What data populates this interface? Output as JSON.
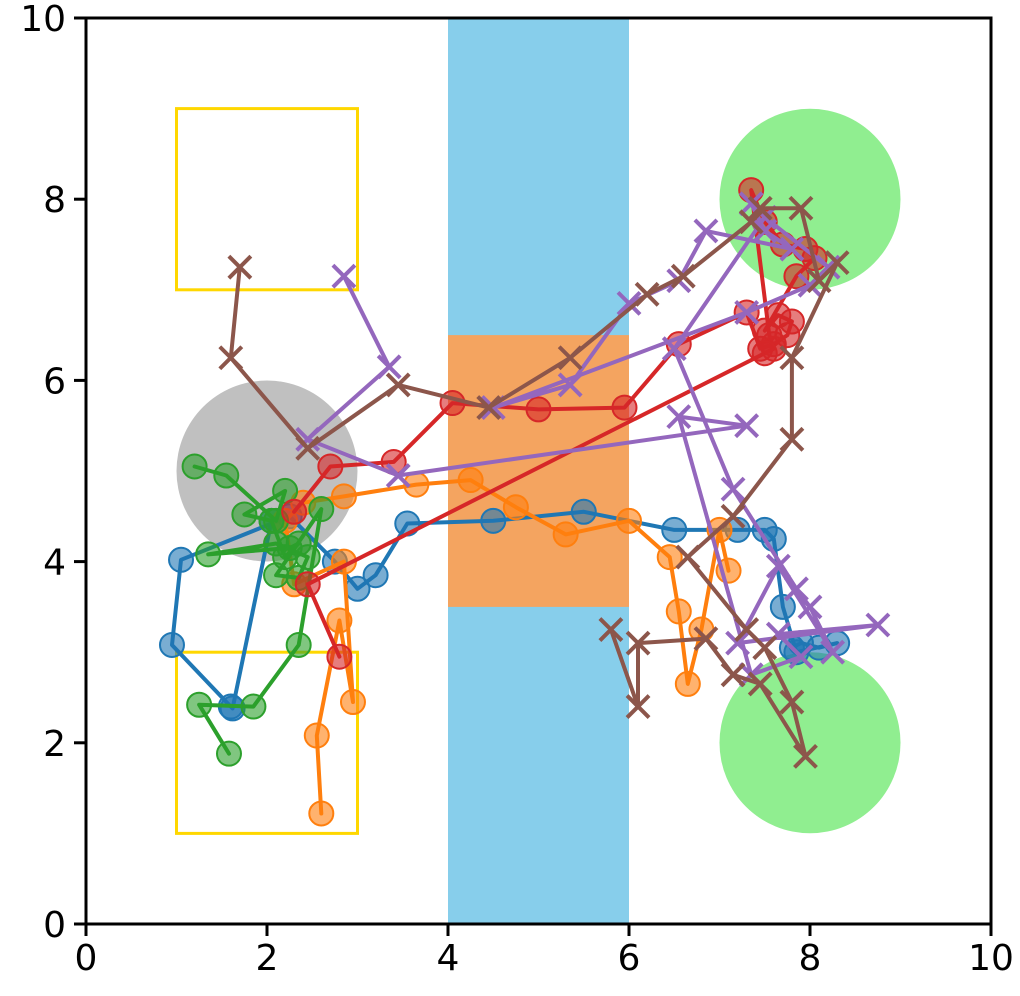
{
  "chart_data": {
    "type": "line",
    "title": "",
    "xlabel": "",
    "ylabel": "",
    "xlim": [
      0,
      10
    ],
    "ylim": [
      0,
      10
    ],
    "grid": false,
    "xticks": [
      "0",
      "2",
      "4",
      "6",
      "8",
      "10"
    ],
    "yticks": [
      "0",
      "2",
      "4",
      "6",
      "8",
      "10"
    ],
    "regions": [
      {
        "shape": "rect",
        "x0": 4,
        "x1": 6,
        "y0": 0,
        "y1": 10,
        "fill": "#87ceeb"
      },
      {
        "shape": "rect",
        "x0": 4,
        "x1": 6,
        "y0": 3.5,
        "y1": 6.5,
        "fill": "#f4a460"
      },
      {
        "shape": "rect",
        "x0": 1,
        "x1": 3,
        "y0": 7,
        "y1": 9,
        "stroke": "#ffd700"
      },
      {
        "shape": "rect",
        "x0": 1,
        "x1": 3,
        "y0": 1,
        "y1": 3,
        "stroke": "#ffd700"
      },
      {
        "shape": "circle",
        "cx": 2,
        "cy": 5,
        "r": 1,
        "fill": "#c0c0c0"
      },
      {
        "shape": "circle",
        "cx": 8,
        "cy": 8,
        "r": 1,
        "fill": "#90ee90"
      },
      {
        "shape": "circle",
        "cx": 8,
        "cy": 2,
        "r": 1,
        "fill": "#90ee90"
      }
    ],
    "series": [
      {
        "color": "#1f77b4",
        "marker": "circle",
        "points": [
          [
            7.8,
            3.05
          ],
          [
            7.9,
            3.1
          ],
          [
            8.1,
            3.05
          ],
          [
            8.3,
            3.1
          ],
          [
            7.85,
            3.0
          ],
          [
            7.7,
            3.5
          ],
          [
            7.6,
            4.25
          ],
          [
            7.5,
            4.35
          ],
          [
            7.2,
            4.35
          ],
          [
            6.5,
            4.35
          ],
          [
            5.5,
            4.55
          ],
          [
            4.5,
            4.45
          ],
          [
            3.55,
            4.42
          ],
          [
            3.2,
            3.85
          ],
          [
            3.0,
            3.7
          ],
          [
            2.75,
            4.0
          ],
          [
            2.25,
            4.5
          ],
          [
            1.05,
            4.02
          ],
          [
            0.95,
            3.08
          ],
          [
            1.6,
            2.4
          ],
          [
            1.62,
            2.38
          ],
          [
            2.05,
            4.45
          ]
        ]
      },
      {
        "color": "#ff7f0e",
        "marker": "circle",
        "points": [
          [
            7.1,
            3.9
          ],
          [
            7.0,
            4.35
          ],
          [
            6.8,
            3.25
          ],
          [
            6.65,
            2.65
          ],
          [
            6.55,
            3.45
          ],
          [
            6.45,
            4.05
          ],
          [
            6.0,
            4.45
          ],
          [
            5.3,
            4.3
          ],
          [
            4.75,
            4.6
          ],
          [
            4.25,
            4.9
          ],
          [
            3.65,
            4.85
          ],
          [
            2.85,
            4.72
          ],
          [
            2.4,
            4.65
          ],
          [
            2.2,
            4.45
          ],
          [
            2.3,
            3.75
          ],
          [
            2.85,
            4.0
          ],
          [
            2.95,
            2.45
          ],
          [
            2.8,
            3.35
          ],
          [
            2.55,
            2.08
          ],
          [
            2.6,
            1.22
          ]
        ]
      },
      {
        "color": "#2ca02c",
        "marker": "circle",
        "points": [
          [
            1.2,
            5.05
          ],
          [
            1.55,
            4.95
          ],
          [
            2.1,
            4.45
          ],
          [
            2.2,
            4.78
          ],
          [
            1.75,
            4.52
          ],
          [
            2.05,
            4.45
          ],
          [
            2.2,
            4.05
          ],
          [
            2.35,
            4.2
          ],
          [
            2.25,
            4.15
          ],
          [
            1.35,
            4.08
          ],
          [
            2.1,
            4.2
          ],
          [
            2.45,
            4.05
          ],
          [
            2.35,
            3.82
          ],
          [
            2.1,
            3.85
          ],
          [
            2.6,
            4.58
          ],
          [
            2.35,
            3.08
          ],
          [
            1.85,
            2.4
          ],
          [
            1.25,
            2.42
          ],
          [
            1.58,
            1.88
          ]
        ]
      },
      {
        "color": "#d62728",
        "marker": "circle",
        "points": [
          [
            2.3,
            4.55
          ],
          [
            2.7,
            5.05
          ],
          [
            3.4,
            5.1
          ],
          [
            4.05,
            5.75
          ],
          [
            5.0,
            5.68
          ],
          [
            5.95,
            5.7
          ],
          [
            6.55,
            6.4
          ],
          [
            7.3,
            6.75
          ],
          [
            7.45,
            6.35
          ],
          [
            7.6,
            6.4
          ],
          [
            7.75,
            6.5
          ],
          [
            7.8,
            6.65
          ],
          [
            7.65,
            6.72
          ],
          [
            7.5,
            6.55
          ],
          [
            7.85,
            7.15
          ],
          [
            8.05,
            7.35
          ],
          [
            7.95,
            7.45
          ],
          [
            7.7,
            7.5
          ],
          [
            7.5,
            7.75
          ],
          [
            7.35,
            8.1
          ],
          [
            7.55,
            6.5
          ],
          [
            7.6,
            6.35
          ],
          [
            7.5,
            6.3
          ],
          [
            2.45,
            3.75
          ],
          [
            2.8,
            2.95
          ]
        ]
      },
      {
        "color": "#9467bd",
        "marker": "x",
        "points": [
          [
            7.35,
            7.95
          ],
          [
            7.5,
            7.65
          ],
          [
            7.8,
            7.45
          ],
          [
            6.85,
            7.65
          ],
          [
            6.55,
            7.1
          ],
          [
            6.0,
            6.85
          ],
          [
            5.35,
            5.95
          ],
          [
            4.5,
            5.7
          ],
          [
            7.3,
            6.75
          ],
          [
            8.0,
            7.05
          ],
          [
            8.2,
            7.25
          ],
          [
            7.5,
            7.8
          ],
          [
            6.5,
            6.35
          ],
          [
            7.15,
            4.8
          ],
          [
            7.85,
            3.7
          ],
          [
            8.0,
            3.5
          ],
          [
            8.25,
            3.0
          ],
          [
            7.65,
            3.95
          ],
          [
            7.2,
            3.1
          ],
          [
            8.75,
            3.3
          ],
          [
            7.65,
            3.2
          ],
          [
            7.9,
            2.95
          ],
          [
            7.35,
            2.75
          ],
          [
            6.55,
            5.6
          ],
          [
            7.3,
            5.5
          ],
          [
            3.45,
            4.95
          ],
          [
            2.45,
            5.35
          ],
          [
            3.35,
            6.15
          ],
          [
            2.85,
            7.15
          ]
        ]
      },
      {
        "color": "#8c564b",
        "marker": "x",
        "points": [
          [
            1.7,
            7.25
          ],
          [
            1.6,
            6.25
          ],
          [
            2.45,
            5.25
          ],
          [
            3.45,
            5.95
          ],
          [
            4.45,
            5.7
          ],
          [
            5.35,
            6.25
          ],
          [
            6.2,
            6.95
          ],
          [
            6.6,
            7.15
          ],
          [
            7.35,
            7.75
          ],
          [
            7.45,
            7.9
          ],
          [
            7.9,
            7.9
          ],
          [
            8.1,
            7.1
          ],
          [
            8.3,
            7.3
          ],
          [
            7.8,
            6.25
          ],
          [
            7.8,
            5.35
          ],
          [
            7.15,
            4.5
          ],
          [
            6.65,
            4.05
          ],
          [
            7.3,
            3.25
          ],
          [
            7.5,
            3.05
          ],
          [
            7.8,
            2.45
          ],
          [
            7.95,
            1.85
          ],
          [
            7.45,
            2.65
          ],
          [
            7.15,
            2.75
          ],
          [
            6.85,
            3.15
          ],
          [
            6.1,
            3.1
          ],
          [
            6.1,
            2.4
          ],
          [
            5.8,
            3.25
          ]
        ]
      }
    ]
  }
}
